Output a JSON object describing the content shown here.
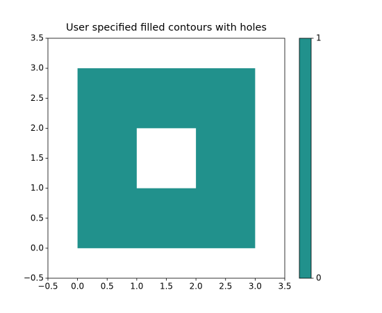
{
  "chart_data": {
    "type": "contourf",
    "title": "User specified filled contours with holes",
    "outer": {
      "x": [
        0,
        3,
        3,
        0
      ],
      "y": [
        0,
        0,
        3,
        3
      ]
    },
    "holes": [
      {
        "x": [
          1,
          2,
          2,
          1
        ],
        "y": [
          1,
          1,
          2,
          2
        ]
      }
    ],
    "levels": [
      0,
      1
    ],
    "color": "#21918c",
    "xlim": [
      -0.5,
      3.5
    ],
    "ylim": [
      -0.5,
      3.5
    ],
    "xticks": [
      {
        "value": -0.5,
        "label": "−0.5"
      },
      {
        "value": 0,
        "label": "0.0"
      },
      0.5,
      {
        "value": 1,
        "label": "1.0"
      },
      1.5,
      {
        "value": 2,
        "label": "2.0"
      },
      2.5,
      {
        "value": 3,
        "label": "3.0"
      },
      3.5
    ],
    "yticks": [
      {
        "value": -0.5,
        "label": "−0.5"
      },
      {
        "value": 0,
        "label": "0.0"
      },
      0.5,
      {
        "value": 1,
        "label": "1.0"
      },
      1.5,
      {
        "value": 2,
        "label": "2.0"
      },
      2.5,
      {
        "value": 3,
        "label": "3.0"
      },
      3.5
    ],
    "colorbar_ticks": [
      0,
      1
    ]
  }
}
